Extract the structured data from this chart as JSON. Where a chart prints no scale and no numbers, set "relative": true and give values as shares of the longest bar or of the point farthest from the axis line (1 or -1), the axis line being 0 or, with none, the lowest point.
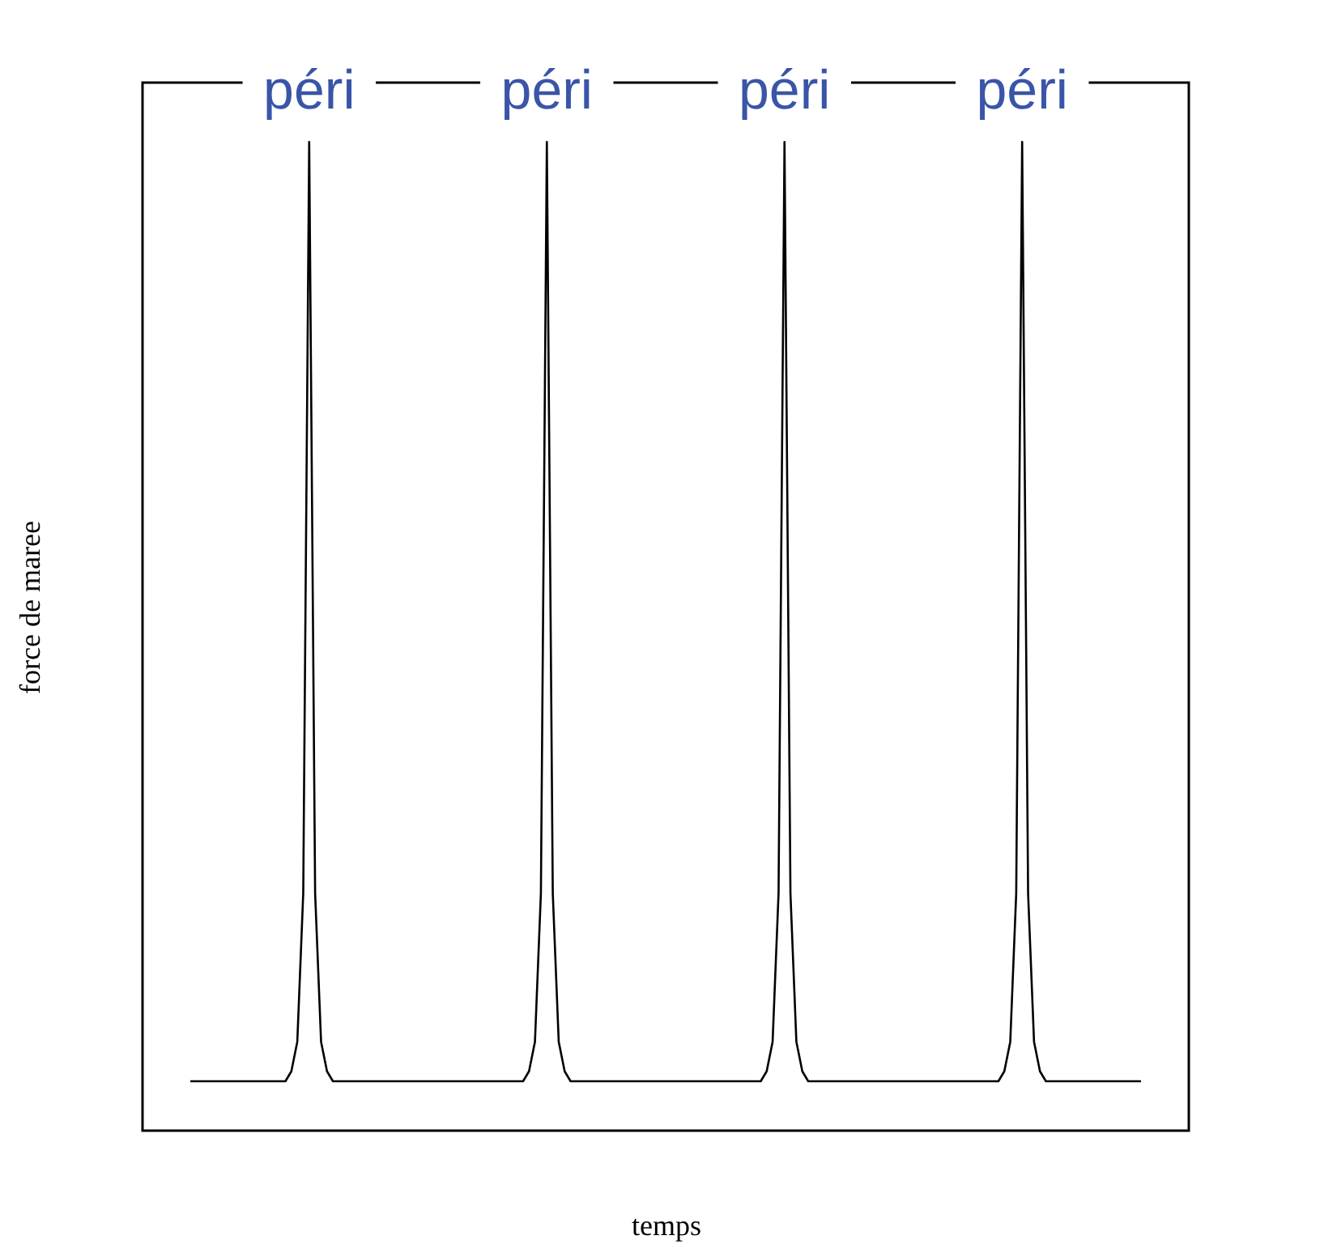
{
  "chart_data": {
    "type": "line",
    "relative": true,
    "xlabel": "temps",
    "ylabel": "force de maree",
    "annotations": [
      "péri",
      "péri",
      "péri",
      "péri"
    ],
    "categories": [
      null,
      null,
      null,
      null,
      null,
      null,
      null,
      null,
      null,
      null,
      null,
      null,
      null,
      null,
      null,
      null,
      null,
      null,
      null,
      null,
      null,
      null,
      null,
      null,
      null,
      null,
      null,
      null,
      null,
      null,
      null,
      null,
      null,
      null,
      null,
      null,
      null,
      null,
      null,
      null,
      null,
      null,
      null,
      null,
      null,
      null,
      null,
      null,
      null,
      null,
      null,
      null,
      null,
      null,
      null,
      null,
      null,
      null,
      null,
      null,
      null,
      null,
      null,
      null,
      null,
      null,
      null,
      null,
      null,
      null,
      null,
      null,
      null,
      null,
      null,
      null,
      null,
      null,
      null,
      null,
      null,
      null,
      null,
      null,
      null,
      null,
      null,
      null,
      null,
      null,
      null,
      null,
      null,
      null,
      null,
      null,
      null,
      null,
      null,
      null,
      null,
      null,
      null,
      null,
      null,
      null,
      null,
      null,
      null,
      null,
      null,
      null,
      null,
      null,
      null,
      null,
      null,
      null,
      null,
      null,
      null,
      null,
      null,
      null,
      null,
      null,
      null,
      null,
      null,
      null,
      null,
      null,
      null,
      null,
      null,
      null,
      null,
      null,
      null,
      null,
      null,
      null,
      null,
      null,
      null,
      null,
      null,
      null,
      null,
      null,
      null,
      null,
      null,
      null,
      null,
      null,
      null,
      null,
      null,
      null,
      null
    ],
    "series": [
      {
        "color": "#000000",
        "values": [
          0.05,
          0.05,
          0.05,
          0.05,
          0.05,
          0.05,
          0.05,
          0.05,
          0.05,
          0.05,
          0.05,
          0.05,
          0.05,
          0.05,
          0.05,
          0.05,
          0.05,
          0.06,
          0.09,
          0.24,
          1,
          0.24,
          0.09,
          0.06,
          0.05,
          0.05,
          0.05,
          0.05,
          0.05,
          0.05,
          0.05,
          0.05,
          0.05,
          0.05,
          0.05,
          0.05,
          0.05,
          0.05,
          0.05,
          0.05,
          0.05,
          0.05,
          0.05,
          0.05,
          0.05,
          0.05,
          0.05,
          0.05,
          0.05,
          0.05,
          0.05,
          0.05,
          0.05,
          0.05,
          0.05,
          0.05,
          0.05,
          0.06,
          0.09,
          0.24,
          1,
          0.24,
          0.09,
          0.06,
          0.05,
          0.05,
          0.05,
          0.05,
          0.05,
          0.05,
          0.05,
          0.05,
          0.05,
          0.05,
          0.05,
          0.05,
          0.05,
          0.05,
          0.05,
          0.05,
          0.05,
          0.05,
          0.05,
          0.05,
          0.05,
          0.05,
          0.05,
          0.05,
          0.05,
          0.05,
          0.05,
          0.05,
          0.05,
          0.05,
          0.05,
          0.05,
          0.05,
          0.06,
          0.09,
          0.24,
          1,
          0.24,
          0.09,
          0.06,
          0.05,
          0.05,
          0.05,
          0.05,
          0.05,
          0.05,
          0.05,
          0.05,
          0.05,
          0.05,
          0.05,
          0.05,
          0.05,
          0.05,
          0.05,
          0.05,
          0.05,
          0.05,
          0.05,
          0.05,
          0.05,
          0.05,
          0.05,
          0.05,
          0.05,
          0.05,
          0.05,
          0.05,
          0.05,
          0.05,
          0.05,
          0.05,
          0.05,
          0.06,
          0.09,
          0.24,
          1,
          0.24,
          0.09,
          0.06,
          0.05,
          0.05,
          0.05,
          0.05,
          0.05,
          0.05,
          0.05,
          0.05,
          0.05,
          0.05,
          0.05,
          0.05,
          0.05,
          0.05,
          0.05,
          0.05,
          0.05
        ]
      }
    ],
    "grid": false
  }
}
